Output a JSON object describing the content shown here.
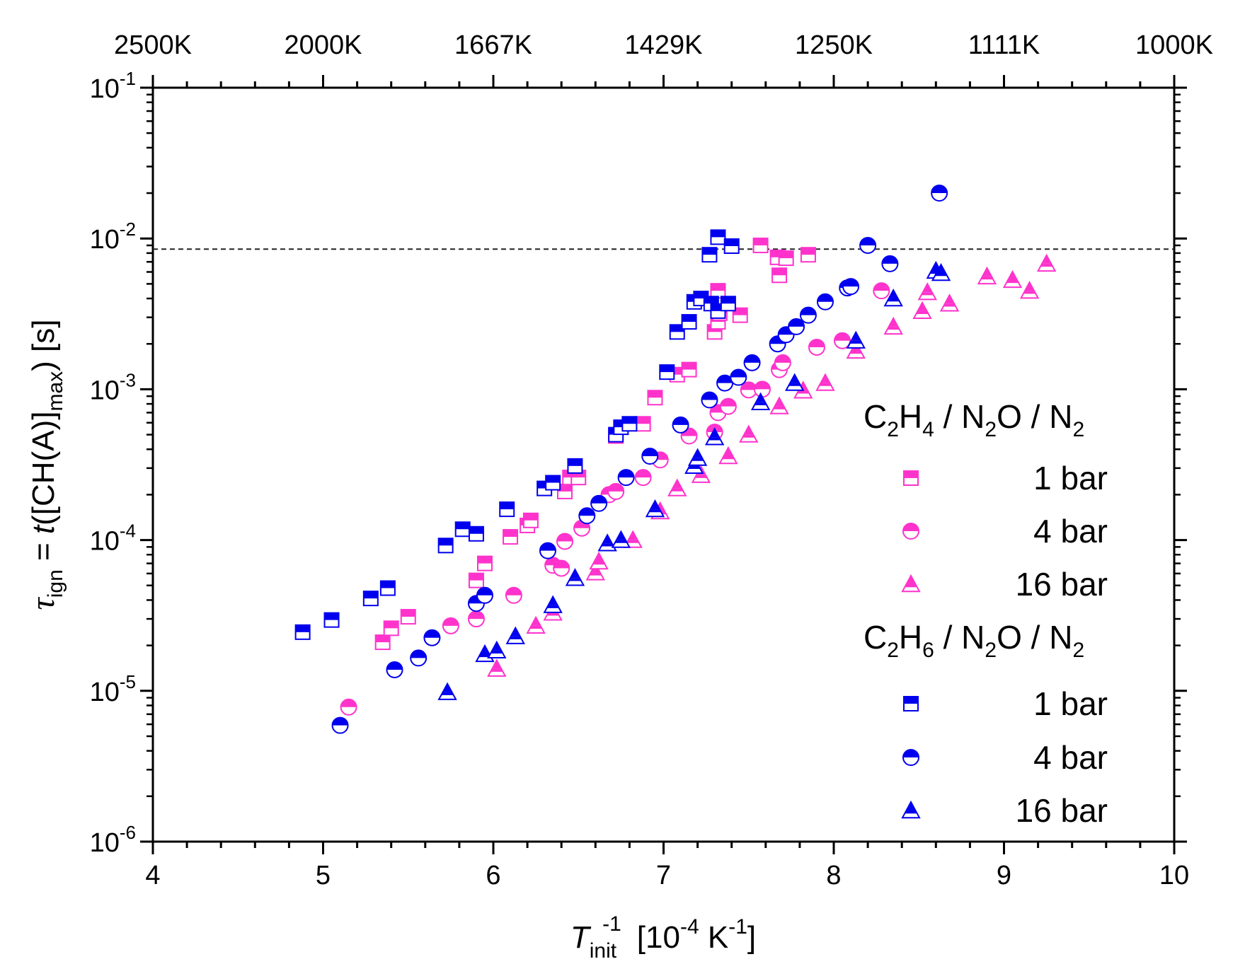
{
  "chart_data": {
    "type": "scatter",
    "xlabel": {
      "symbol": "T",
      "sub": "init",
      "sup": "-1",
      "unit": "[10",
      "unit_sup": "-4",
      "unit_rest": " K",
      "unit_sup2": "-1",
      "unit_close": "]"
    },
    "ylabel": {
      "symbol": "τ",
      "sub": "ign",
      "eq": " = ",
      "t": "t",
      "body": "([CH(A)]",
      "sub2": "max",
      "close": ")  [s]"
    },
    "xlim": [
      4,
      10
    ],
    "ylim_log10": [
      -6,
      -1
    ],
    "x_ticks": [
      "4",
      "5",
      "6",
      "7",
      "8",
      "9",
      "10"
    ],
    "y_ticks": [
      {
        "base": "10",
        "exp": "-6"
      },
      {
        "base": "10",
        "exp": "-5"
      },
      {
        "base": "10",
        "exp": "-4"
      },
      {
        "base": "10",
        "exp": "-3"
      },
      {
        "base": "10",
        "exp": "-2"
      },
      {
        "base": "10",
        "exp": "-1"
      }
    ],
    "top_axis_labels": [
      {
        "label": "2500K",
        "x": 4.0
      },
      {
        "label": "2000K",
        "x": 5.0
      },
      {
        "label": "1667K",
        "x": 6.0
      },
      {
        "label": "1429K",
        "x": 7.0
      },
      {
        "label": "1250K",
        "x": 8.0
      },
      {
        "label": "1111K",
        "x": 9.0
      },
      {
        "label": "1000K",
        "x": 10.0
      }
    ],
    "reference_line_y": 0.0085,
    "legend": {
      "groups": [
        {
          "f": [
            "C",
            "2",
            "H",
            "4",
            " / N",
            "2",
            "O / N",
            "2"
          ],
          "entries": [
            {
              "label": "1 bar"
            },
            {
              "label": "4 bar"
            },
            {
              "label": "16 bar"
            }
          ]
        },
        {
          "f": [
            "C",
            "2",
            "H",
            "6",
            " / N",
            "2",
            "O / N",
            "2"
          ],
          "entries": [
            {
              "label": "1 bar"
            },
            {
              "label": "4 bar"
            },
            {
              "label": "16 bar"
            }
          ]
        }
      ]
    },
    "series": [
      {
        "name": "C2H4 / N2O / N2 1 bar",
        "color": "#ff33cc",
        "marker": "square",
        "x": [
          5.35,
          5.4,
          5.5,
          5.9,
          5.95,
          6.1,
          6.2,
          6.22,
          6.42,
          6.45,
          6.5,
          6.72,
          6.88,
          6.95,
          7.08,
          7.15,
          7.3,
          7.32,
          7.32,
          7.33,
          7.45,
          7.57,
          7.67,
          7.68,
          7.72,
          7.85
        ],
        "y": [
          2.1e-05,
          2.6e-05,
          3.1e-05,
          5.4e-05,
          7e-05,
          0.000105,
          0.000125,
          0.000135,
          0.00021,
          0.00026,
          0.00026,
          0.00049,
          0.00059,
          0.00088,
          0.00125,
          0.00135,
          0.0024,
          0.0028,
          0.0045,
          0.0032,
          0.0031,
          0.009,
          0.0075,
          0.0057,
          0.0074,
          0.0078
        ]
      },
      {
        "name": "C2H4 / N2O / N2 4 bar",
        "color": "#ff33cc",
        "marker": "circle",
        "x": [
          5.15,
          5.75,
          5.9,
          6.12,
          6.35,
          6.4,
          6.42,
          6.52,
          6.68,
          6.72,
          6.88,
          6.98,
          7.15,
          7.3,
          7.32,
          7.38,
          7.5,
          7.58,
          7.68,
          7.7,
          7.9,
          8.05,
          8.28
        ],
        "y": [
          7.8e-06,
          2.7e-05,
          3e-05,
          4.3e-05,
          6.8e-05,
          6.5e-05,
          9.8e-05,
          0.00012,
          0.0002,
          0.00021,
          0.00026,
          0.00034,
          0.00049,
          0.00052,
          0.0007,
          0.00077,
          0.00099,
          0.001,
          0.00135,
          0.0015,
          0.0019,
          0.0021,
          0.0045
        ]
      },
      {
        "name": "C2H4 / N2O / N2 16 bar",
        "color": "#ff33cc",
        "marker": "triangle",
        "x": [
          6.02,
          6.25,
          6.35,
          6.6,
          6.62,
          6.82,
          6.98,
          7.08,
          7.22,
          7.38,
          7.5,
          7.68,
          7.82,
          7.95,
          8.13,
          8.35,
          8.52,
          8.55,
          8.68,
          8.9,
          9.05,
          9.15,
          9.25
        ],
        "y": [
          1.4e-05,
          2.7e-05,
          3.3e-05,
          6.1e-05,
          7.2e-05,
          0.0001,
          0.000155,
          0.00022,
          0.00027,
          0.00036,
          0.0005,
          0.00077,
          0.00098,
          0.0011,
          0.0018,
          0.0026,
          0.0033,
          0.0044,
          0.0037,
          0.0056,
          0.0053,
          0.0045,
          0.0068
        ]
      },
      {
        "name": "C2H6 / N2O / N2 1 bar",
        "color": "#0000ee",
        "marker": "square",
        "x": [
          4.88,
          5.05,
          5.28,
          5.38,
          5.72,
          5.82,
          5.9,
          6.08,
          6.3,
          6.35,
          6.48,
          6.72,
          6.75,
          6.8,
          7.02,
          7.08,
          7.15,
          7.18,
          7.22,
          7.27,
          7.28,
          7.32,
          7.32,
          7.38,
          7.4
        ],
        "y": [
          2.45e-05,
          2.95e-05,
          4.1e-05,
          4.8e-05,
          9.2e-05,
          0.000118,
          0.00011,
          0.00016,
          0.00022,
          0.00024,
          0.00031,
          0.0005,
          0.00056,
          0.00059,
          0.0013,
          0.0024,
          0.0028,
          0.0038,
          0.004,
          0.0078,
          0.0037,
          0.0033,
          0.0102,
          0.0037,
          0.0089
        ]
      },
      {
        "name": "C2H6 / N2O / N2 4 bar",
        "color": "#0000ee",
        "marker": "circle",
        "x": [
          5.1,
          5.42,
          5.56,
          5.64,
          5.9,
          5.95,
          6.32,
          6.55,
          6.62,
          6.78,
          6.92,
          7.1,
          7.27,
          7.36,
          7.44,
          7.52,
          7.67,
          7.72,
          7.78,
          7.85,
          7.95,
          8.08,
          8.1,
          8.2,
          8.33,
          8.62
        ],
        "y": [
          5.9e-06,
          1.38e-05,
          1.65e-05,
          2.25e-05,
          3.8e-05,
          4.3e-05,
          8.5e-05,
          0.000145,
          0.000175,
          0.00026,
          0.00036,
          0.00058,
          0.00085,
          0.0011,
          0.0012,
          0.0015,
          0.002,
          0.0023,
          0.0026,
          0.0031,
          0.0038,
          0.0047,
          0.0048,
          0.009,
          0.0068,
          0.02
        ]
      },
      {
        "name": "C2H6 / N2O / N2 16 bar",
        "color": "#0000ee",
        "marker": "triangle",
        "x": [
          5.73,
          5.95,
          6.02,
          6.13,
          6.35,
          6.48,
          6.67,
          6.75,
          6.95,
          7.18,
          7.2,
          7.3,
          7.57,
          7.77,
          8.13,
          8.35,
          8.6,
          8.63
        ],
        "y": [
          9.8e-06,
          1.75e-05,
          1.85e-05,
          2.3e-05,
          3.7e-05,
          5.6e-05,
          9.5e-05,
          0.0001,
          0.00016,
          0.00031,
          0.00035,
          0.00048,
          0.00082,
          0.0011,
          0.0021,
          0.004,
          0.0061,
          0.0059
        ]
      }
    ]
  }
}
